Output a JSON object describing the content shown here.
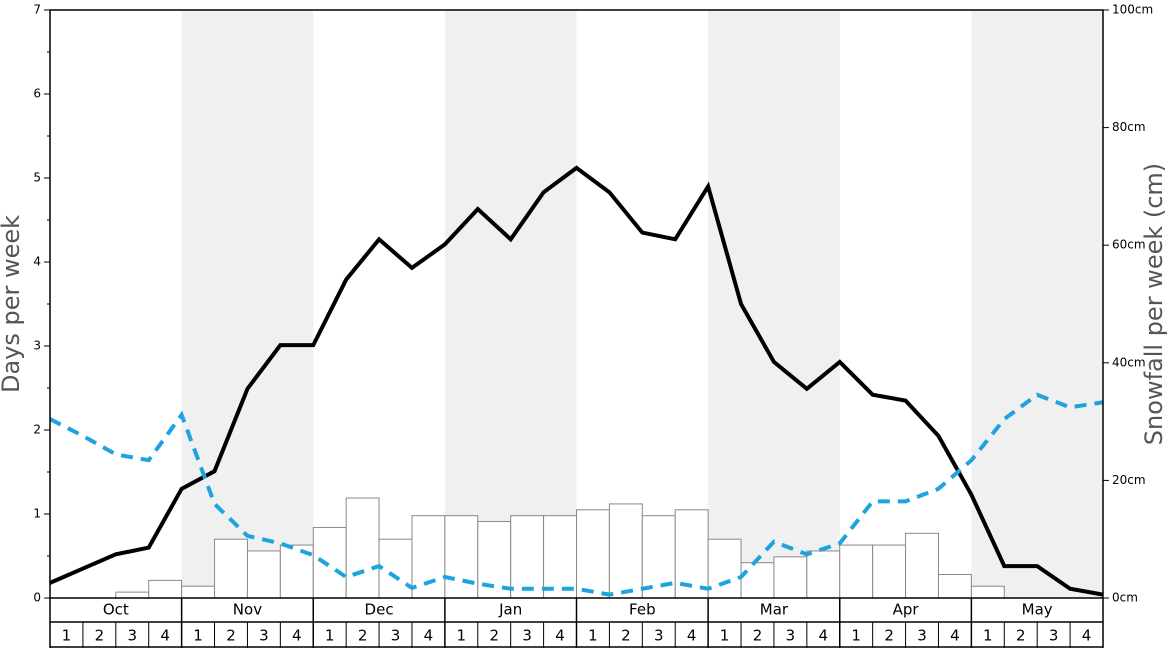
{
  "chart_data": {
    "type": "combo",
    "y_label": "Days per week",
    "y2_label": "Snowfall per week (cm)",
    "months": [
      "Oct",
      "Nov",
      "Dec",
      "Jan",
      "Feb",
      "Mar",
      "Apr",
      "May"
    ],
    "categories": [
      "1",
      "2",
      "3",
      "4",
      "1",
      "2",
      "3",
      "4",
      "1",
      "2",
      "3",
      "4",
      "1",
      "2",
      "3",
      "4",
      "1",
      "2",
      "3",
      "4",
      "1",
      "2",
      "3",
      "4",
      "1",
      "2",
      "3",
      "4",
      "1",
      "2",
      "3",
      "4"
    ],
    "ylim": [
      0,
      7
    ],
    "yticks": [
      0,
      1,
      2,
      3,
      4,
      5,
      6,
      7
    ],
    "y2lim": [
      0,
      100
    ],
    "y2ticks": [
      {
        "value": 0,
        "label": "0cm"
      },
      {
        "value": 20,
        "label": "20cm"
      },
      {
        "value": 40,
        "label": "40cm"
      },
      {
        "value": 60,
        "label": "60cm"
      },
      {
        "value": 80,
        "label": "80cm"
      },
      {
        "value": 100,
        "label": "100cm"
      }
    ],
    "bars": {
      "axis": "y2",
      "color": "#ffffff",
      "values": [
        0,
        0,
        1,
        3,
        2,
        10,
        8,
        9,
        12,
        17,
        10,
        14,
        14,
        13,
        14,
        14,
        15,
        16,
        14,
        15,
        10,
        6,
        7,
        8,
        9,
        9,
        11,
        4,
        2,
        0,
        0,
        0
      ]
    },
    "lines": [
      {
        "color": "#000000",
        "dashed": false,
        "x": [
          0,
          1,
          2,
          3,
          4,
          5,
          6,
          7,
          8,
          9,
          10,
          11,
          12,
          13,
          14,
          15,
          16,
          17,
          18,
          19,
          20,
          21,
          22,
          23,
          24,
          25,
          26,
          27,
          28,
          29,
          30,
          31,
          32
        ],
        "values": [
          0.18,
          0.35,
          0.52,
          0.6,
          1.3,
          1.51,
          2.49,
          3.01,
          3.01,
          3.79,
          4.27,
          3.93,
          4.21,
          4.63,
          4.27,
          4.83,
          5.12,
          4.83,
          4.35,
          4.27,
          4.9,
          3.5,
          2.81,
          2.49,
          2.81,
          2.42,
          2.35,
          1.93,
          1.23,
          0.38,
          0.38,
          0.11,
          0.04
        ]
      },
      {
        "color": "#1fa3e0",
        "dashed": true,
        "x": [
          0,
          1,
          2,
          3,
          4,
          5,
          6,
          7,
          8,
          9,
          10,
          11,
          12,
          13,
          14,
          15,
          16,
          17,
          18,
          19,
          20,
          21,
          22,
          23,
          24,
          25,
          26,
          27,
          28,
          29,
          30,
          31,
          32
        ],
        "values": [
          2.13,
          1.93,
          1.71,
          1.64,
          2.18,
          1.12,
          0.74,
          0.65,
          0.51,
          0.25,
          0.38,
          0.12,
          0.25,
          0.17,
          0.11,
          0.11,
          0.11,
          0.04,
          0.11,
          0.18,
          0.11,
          0.25,
          0.67,
          0.52,
          0.65,
          1.15,
          1.15,
          1.3,
          1.64,
          2.13,
          2.42,
          2.27,
          2.33
        ]
      }
    ]
  }
}
